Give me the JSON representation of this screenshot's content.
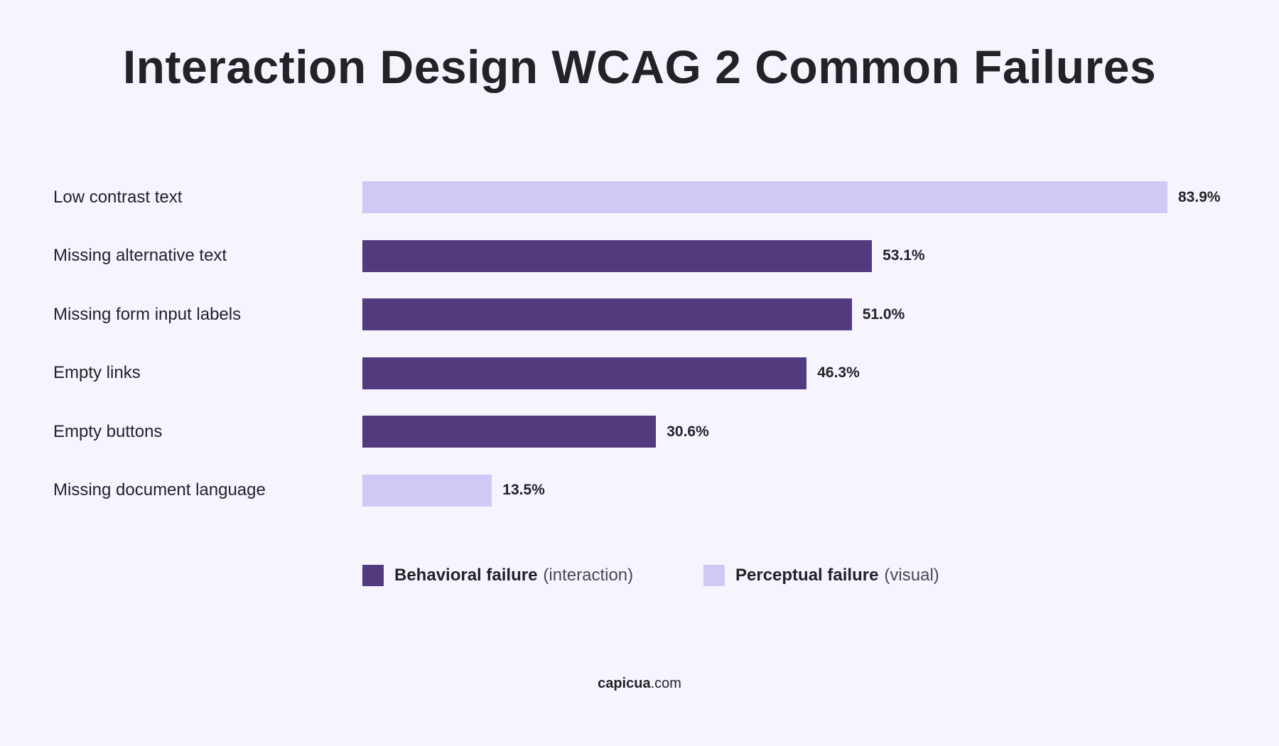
{
  "title": "Interaction Design WCAG 2 Common Failures",
  "colors": {
    "behavioral": "#533a7f",
    "perceptual": "#d0c9f6",
    "background": "#f6f4fd",
    "text": "#232227"
  },
  "chart_data": {
    "type": "bar",
    "orientation": "horizontal",
    "title": "Interaction Design WCAG 2 Common Failures",
    "categories": [
      "Low contrast text",
      "Missing alternative text",
      "Missing form input labels",
      "Empty links",
      "Empty buttons",
      "Missing document language"
    ],
    "values": [
      83.9,
      53.1,
      51.0,
      46.3,
      30.6,
      13.5
    ],
    "value_labels": [
      "83.9%",
      "53.1%",
      "51.0%",
      "46.3%",
      "30.6%",
      "13.5%"
    ],
    "groups": [
      "perceptual",
      "behavioral",
      "behavioral",
      "behavioral",
      "behavioral",
      "perceptual"
    ],
    "grid": false,
    "legend_position": "bottom-center",
    "legend": [
      {
        "key": "behavioral",
        "name": "Behavioral failure",
        "note": "(interaction)"
      },
      {
        "key": "perceptual",
        "name": "Perceptual failure",
        "note": "(visual)"
      }
    ]
  },
  "footer": {
    "brand": "capicua",
    "suffix": ".com"
  }
}
